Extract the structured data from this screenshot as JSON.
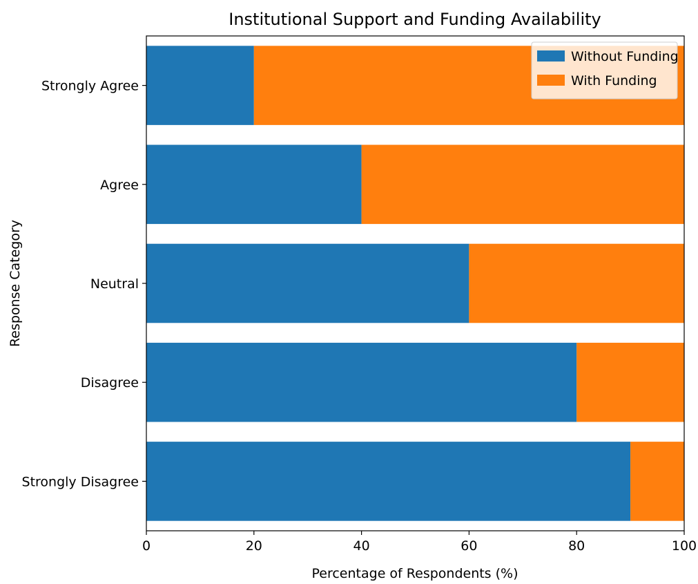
{
  "chart_data": {
    "type": "bar",
    "orientation": "horizontal",
    "stacked": true,
    "title": "Institutional Support and Funding Availability",
    "xlabel": "Percentage of Respondents (%)",
    "ylabel": "Response Category",
    "categories": [
      "Strongly Agree",
      "Agree",
      "Neutral",
      "Disagree",
      "Strongly Disagree"
    ],
    "series": [
      {
        "name": "Without Funding",
        "color": "#1f77b4",
        "values": [
          20,
          40,
          60,
          80,
          90
        ]
      },
      {
        "name": "With Funding",
        "color": "#ff7f0e",
        "values": [
          80,
          60,
          40,
          20,
          10
        ]
      }
    ],
    "xlim": [
      0,
      100
    ],
    "xticks": [
      "0",
      "20",
      "40",
      "60",
      "80",
      "100"
    ],
    "grid": false,
    "legend_position": "top-right"
  }
}
